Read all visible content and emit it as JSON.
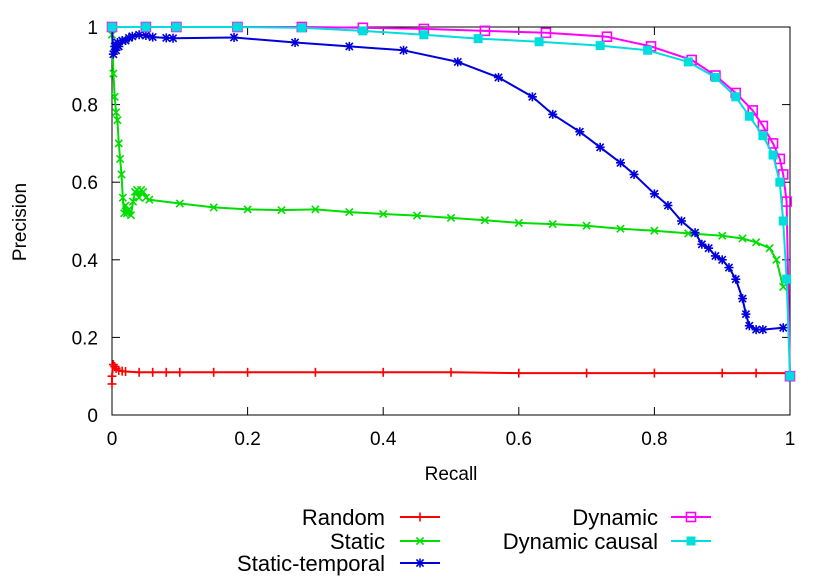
{
  "chart_data": {
    "type": "line",
    "title": "",
    "xlabel": "Recall",
    "ylabel": "Precision",
    "xlim": [
      0,
      1
    ],
    "ylim": [
      0,
      1
    ],
    "xticks": [
      "0",
      "0.2",
      "0.4",
      "0.6",
      "0.8",
      "1"
    ],
    "yticks": [
      "0",
      "0.2",
      "0.4",
      "0.6",
      "0.8",
      "1"
    ],
    "grid": false,
    "legend_position": "bottom",
    "series": [
      {
        "name": "Random",
        "color": "#ff0000",
        "marker": "plus",
        "x": [
          0,
          0,
          0.002,
          0.004,
          0.006,
          0.01,
          0.015,
          0.02,
          0.04,
          0.06,
          0.08,
          0.1,
          0.15,
          0.2,
          0.3,
          0.4,
          0.5,
          0.6,
          0.7,
          0.8,
          0.9,
          0.95,
          1.0
        ],
        "y": [
          0.08,
          0.1,
          0.13,
          0.125,
          0.12,
          0.115,
          0.113,
          0.112,
          0.11,
          0.11,
          0.11,
          0.11,
          0.11,
          0.11,
          0.11,
          0.11,
          0.11,
          0.108,
          0.108,
          0.108,
          0.108,
          0.108,
          0.108
        ]
      },
      {
        "name": "Static",
        "color": "#00dd00",
        "marker": "cross",
        "x": [
          0,
          0.002,
          0.004,
          0.006,
          0.008,
          0.01,
          0.012,
          0.014,
          0.016,
          0.018,
          0.02,
          0.022,
          0.025,
          0.028,
          0.031,
          0.034,
          0.037,
          0.04,
          0.043,
          0.046,
          0.05,
          0.055,
          0.1,
          0.15,
          0.2,
          0.25,
          0.3,
          0.35,
          0.4,
          0.45,
          0.5,
          0.55,
          0.6,
          0.65,
          0.7,
          0.75,
          0.8,
          0.85,
          0.9,
          0.93,
          0.95,
          0.97,
          0.98,
          0.99
        ],
        "y": [
          0.98,
          0.88,
          0.82,
          0.78,
          0.76,
          0.7,
          0.66,
          0.62,
          0.56,
          0.52,
          0.54,
          0.52,
          0.53,
          0.515,
          0.55,
          0.575,
          0.58,
          0.56,
          0.58,
          0.575,
          0.56,
          0.555,
          0.545,
          0.535,
          0.53,
          0.528,
          0.53,
          0.523,
          0.518,
          0.514,
          0.508,
          0.502,
          0.495,
          0.492,
          0.488,
          0.48,
          0.475,
          0.468,
          0.462,
          0.455,
          0.445,
          0.43,
          0.4,
          0.33
        ]
      },
      {
        "name": "Static-temporal",
        "color": "#0000dd",
        "marker": "star",
        "x": [
          0,
          0.002,
          0.004,
          0.006,
          0.008,
          0.01,
          0.015,
          0.02,
          0.025,
          0.03,
          0.04,
          0.05,
          0.06,
          0.08,
          0.09,
          0.18,
          0.27,
          0.35,
          0.43,
          0.51,
          0.57,
          0.62,
          0.65,
          0.69,
          0.72,
          0.75,
          0.77,
          0.8,
          0.82,
          0.84,
          0.86,
          0.87,
          0.88,
          0.89,
          0.9,
          0.91,
          0.92,
          0.93,
          0.935,
          0.94,
          0.95,
          0.96,
          0.99
        ],
        "y": [
          1.0,
          0.93,
          0.95,
          0.94,
          0.96,
          0.95,
          0.965,
          0.965,
          0.972,
          0.976,
          0.98,
          0.978,
          0.974,
          0.972,
          0.971,
          0.973,
          0.96,
          0.95,
          0.94,
          0.91,
          0.87,
          0.82,
          0.775,
          0.73,
          0.69,
          0.65,
          0.62,
          0.57,
          0.54,
          0.5,
          0.47,
          0.44,
          0.43,
          0.41,
          0.4,
          0.38,
          0.35,
          0.3,
          0.26,
          0.23,
          0.22,
          0.22,
          0.225
        ]
      },
      {
        "name": "Dynamic",
        "color": "#ff00ff",
        "marker": "square",
        "x": [
          0,
          0.05,
          0.095,
          0.185,
          0.28,
          0.37,
          0.46,
          0.55,
          0.64,
          0.73,
          0.795,
          0.855,
          0.89,
          0.92,
          0.945,
          0.96,
          0.975,
          0.985,
          0.99,
          0.995,
          1.0
        ],
        "y": [
          1.0,
          1.0,
          1.0,
          1.0,
          1.0,
          0.998,
          0.995,
          0.99,
          0.985,
          0.975,
          0.95,
          0.915,
          0.875,
          0.83,
          0.785,
          0.745,
          0.7,
          0.66,
          0.62,
          0.55,
          0.1
        ]
      },
      {
        "name": "Dynamic causal",
        "color": "#00dddd",
        "marker": "filled-square",
        "x": [
          0,
          0.05,
          0.095,
          0.185,
          0.28,
          0.37,
          0.46,
          0.54,
          0.63,
          0.72,
          0.79,
          0.85,
          0.89,
          0.92,
          0.94,
          0.96,
          0.975,
          0.985,
          0.99,
          0.995,
          1.0
        ],
        "y": [
          1.0,
          1.0,
          1.0,
          1.0,
          0.998,
          0.99,
          0.98,
          0.97,
          0.962,
          0.952,
          0.94,
          0.91,
          0.87,
          0.82,
          0.77,
          0.72,
          0.67,
          0.6,
          0.5,
          0.35,
          0.1
        ]
      }
    ]
  }
}
